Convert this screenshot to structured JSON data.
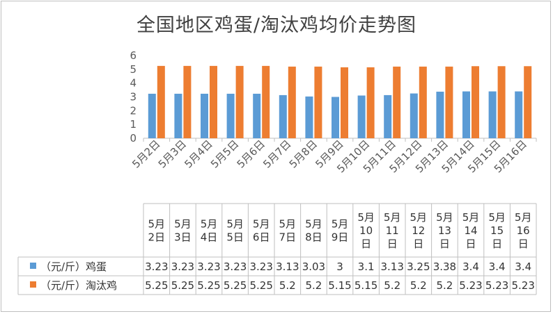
{
  "chart_data": {
    "type": "bar",
    "title": "全国地区鸡蛋/淘汰鸡均价走势图",
    "categories": [
      "5月2日",
      "5月3日",
      "5月4日",
      "5月5日",
      "5月6日",
      "5月7日",
      "5月8日",
      "5月9日",
      "5月10日",
      "5月11日",
      "5月12日",
      "5月13日",
      "5月14日",
      "5月15日",
      "5月16日"
    ],
    "series": [
      {
        "name": "（元/斤）鸡蛋",
        "color": "#5b9bd5",
        "values": [
          3.23,
          3.23,
          3.23,
          3.23,
          3.23,
          3.13,
          3.03,
          3,
          3.1,
          3.13,
          3.25,
          3.38,
          3.4,
          3.4,
          3.4
        ]
      },
      {
        "name": "（元/斤）淘汰鸡",
        "color": "#ed7d31",
        "values": [
          5.25,
          5.25,
          5.25,
          5.25,
          5.25,
          5.2,
          5.2,
          5.15,
          5.15,
          5.2,
          5.2,
          5.2,
          5.23,
          5.23,
          5.23
        ]
      }
    ],
    "ylim": [
      0,
      6
    ],
    "yticks": [
      0,
      1,
      2,
      3,
      4,
      5,
      6
    ],
    "grid": false,
    "legend": "data-table",
    "table_labels": [
      [
        "5月",
        "2日"
      ],
      [
        "5月",
        "3日"
      ],
      [
        "5月",
        "4日"
      ],
      [
        "5月",
        "5日"
      ],
      [
        "5月",
        "6日"
      ],
      [
        "5月",
        "7日"
      ],
      [
        "5月",
        "8日"
      ],
      [
        "5月",
        "9日"
      ],
      [
        "5月",
        "10",
        "日"
      ],
      [
        "5月",
        "11",
        "日"
      ],
      [
        "5月",
        "12",
        "日"
      ],
      [
        "5月",
        "13",
        "日"
      ],
      [
        "5月",
        "14",
        "日"
      ],
      [
        "5月",
        "15",
        "日"
      ],
      [
        "5月",
        "16",
        "日"
      ]
    ],
    "table_values": [
      [
        "3.23",
        "3.23",
        "3.23",
        "3.23",
        "3.23",
        "3.13",
        "3.03",
        "3",
        "3.1",
        "3.13",
        "3.25",
        "3.38",
        "3.4",
        "3.4",
        "3.4"
      ],
      [
        "5.25",
        "5.25",
        "5.25",
        "5.25",
        "5.25",
        "5.2",
        "5.2",
        "5.15",
        "5.15",
        "5.2",
        "5.2",
        "5.2",
        "5.23",
        "5.23",
        "5.23"
      ]
    ]
  }
}
